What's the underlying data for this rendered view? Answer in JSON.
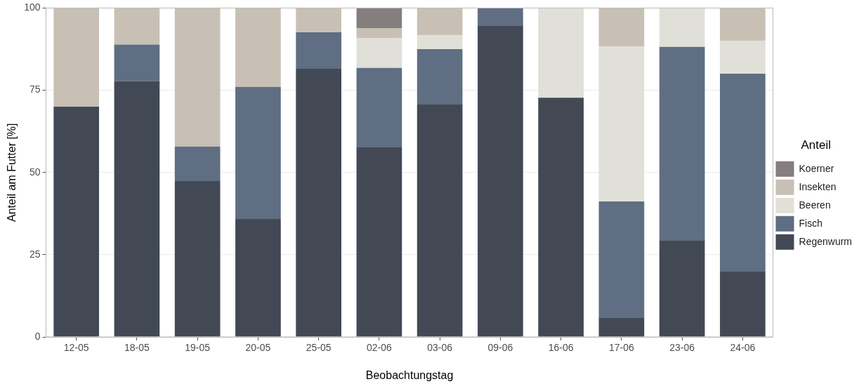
{
  "chart_data": {
    "type": "bar",
    "stacked": true,
    "xlabel": "Beobachtungstag",
    "ylabel": "Anteil am Futter [%]",
    "legend_title": "Anteil",
    "legend": "right",
    "categories": [
      "12-05",
      "18-05",
      "19-05",
      "20-05",
      "25-05",
      "02-06",
      "03-06",
      "09-06",
      "16-06",
      "17-06",
      "23-06",
      "24-06"
    ],
    "ylim": [
      0,
      100
    ],
    "yticks": [
      0,
      25,
      50,
      75,
      100
    ],
    "grid": true,
    "series": [
      {
        "name": "Regenwurm",
        "color": "#424955",
        "values": [
          70,
          77.8,
          47.4,
          36,
          81.5,
          57.6,
          70.8,
          94.7,
          72.7,
          5.9,
          29.4,
          20
        ]
      },
      {
        "name": "Fisch",
        "color": "#5f6e82",
        "values": [
          null,
          11.1,
          10.5,
          40,
          11.1,
          24.2,
          16.7,
          5.3,
          null,
          35.3,
          58.8,
          60
        ]
      },
      {
        "name": "Beeren",
        "color": "#e0e0d8",
        "values": [
          null,
          null,
          null,
          null,
          null,
          9.1,
          4.2,
          null,
          27.3,
          47.1,
          11.8,
          10
        ]
      },
      {
        "name": "Insekten",
        "color": "#c8c0b4",
        "values": [
          30,
          11.1,
          42.1,
          24,
          7.4,
          3,
          8.3,
          null,
          null,
          11.7,
          null,
          10
        ]
      },
      {
        "name": "Koerner",
        "color": "#857e7e",
        "values": [
          null,
          null,
          null,
          null,
          null,
          6.1,
          null,
          null,
          null,
          null,
          null,
          null
        ]
      }
    ]
  }
}
